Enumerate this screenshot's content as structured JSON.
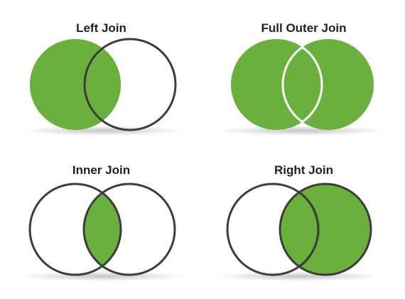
{
  "colors": {
    "fill": "#6ab03c",
    "stroke": "#3c3c3c",
    "overlap_line_on_green": "#ffffff",
    "shadow": "#bdbdbd"
  },
  "diagrams": [
    {
      "title": "Left Join",
      "fill_left": true,
      "fill_right": false,
      "fill_overlap": true
    },
    {
      "title": "Full Outer Join",
      "fill_left": true,
      "fill_right": true,
      "fill_overlap": true
    },
    {
      "title": "Inner Join",
      "fill_left": false,
      "fill_right": false,
      "fill_overlap": true
    },
    {
      "title": "Right Join",
      "fill_left": false,
      "fill_right": true,
      "fill_overlap": true
    }
  ]
}
